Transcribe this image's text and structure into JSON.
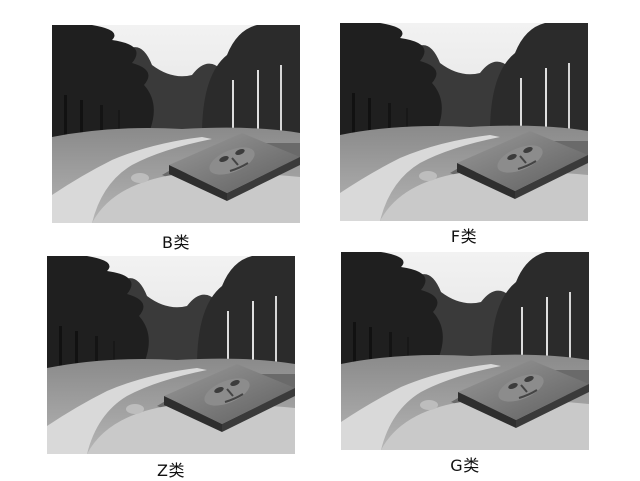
{
  "panels": [
    {
      "id": "b",
      "caption": "B类"
    },
    {
      "id": "f",
      "caption": "F类"
    },
    {
      "id": "z",
      "caption": "Z类"
    },
    {
      "id": "g",
      "caption": "G类"
    }
  ],
  "colors": {
    "background": "#ffffff",
    "sky": "#e9e9e9",
    "trees_dark": "#2a2a2a",
    "lawn": "#7d7d7d",
    "path": "#dcdcdc",
    "sculpture": "#555555"
  }
}
